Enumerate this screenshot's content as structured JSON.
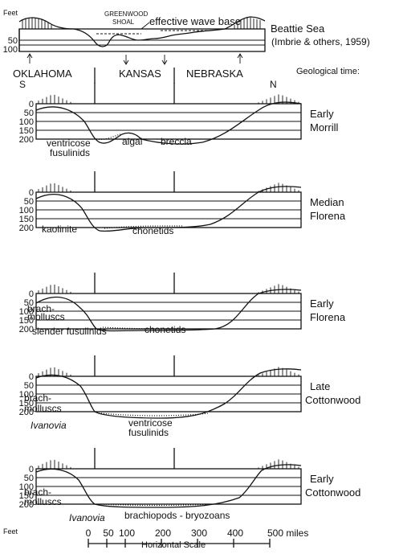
{
  "top": {
    "feet_label": "Feet",
    "depth_ticks": [
      "50",
      "100"
    ],
    "shoal_label_1": "GREENWOOD",
    "shoal_label_2": "SHOAL",
    "wave_base": "effective wave base",
    "sea_title": "Beattie Sea",
    "sea_source": "(Imbrie & others, 1959)"
  },
  "states": {
    "oklahoma": "OKLAHOMA",
    "kansas": "KANSAS",
    "nebraska": "NEBRASKA",
    "south": "S",
    "north": "N",
    "geo_time": "Geological time:"
  },
  "panels": [
    {
      "time_1": "Early",
      "time_2": "Morrill",
      "ticks": [
        "0",
        "50",
        "100",
        "150",
        "200"
      ],
      "labels": [
        "ventricose",
        "fusulinids",
        "algal",
        "breccia"
      ]
    },
    {
      "time_1": "Median",
      "time_2": "Florena",
      "ticks": [
        "0",
        "50",
        "100",
        "150",
        "200"
      ],
      "labels": [
        "kaolinite",
        "chonetids"
      ]
    },
    {
      "time_1": "Early",
      "time_2": "Florena",
      "ticks": [
        "0",
        "50",
        "100",
        "150",
        "200"
      ],
      "labels": [
        "brach-",
        "molluscs",
        "slender fusulinids",
        "chonetids"
      ]
    },
    {
      "time_1": "Late",
      "time_2": "Cottonwood",
      "ticks": [
        "0",
        "50",
        "100",
        "150",
        "200"
      ],
      "labels": [
        "brach-",
        "molluscs",
        "Ivanovia",
        "ventricose",
        "fusulinids"
      ]
    },
    {
      "time_1": "Early",
      "time_2": "Cottonwood",
      "ticks": [
        "0",
        "50",
        "100",
        "150",
        "200"
      ],
      "labels": [
        "brach-",
        "molluscs",
        "Ivanovia",
        "brachiopods - bryozoans"
      ]
    }
  ],
  "bottom": {
    "feet_label": "Feet",
    "scale_ticks": [
      "0",
      "50",
      "100",
      "200",
      "300",
      "400",
      "500 miles"
    ],
    "scale_title": "Horizontal Scale"
  }
}
